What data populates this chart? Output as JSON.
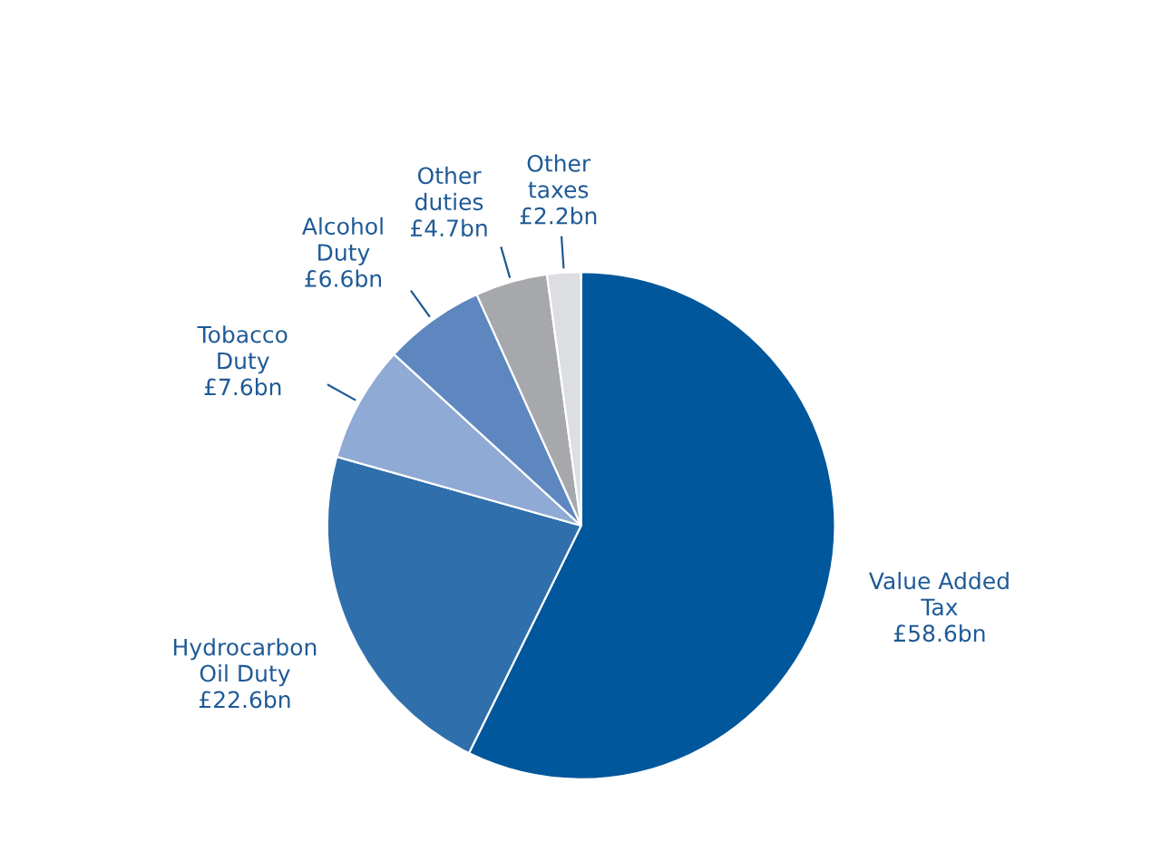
{
  "chart_data": {
    "type": "pie",
    "categories": [
      "Value Added\nTax",
      "Hydrocarbon\nOil Duty",
      "Tobacco\nDuty",
      "Alcohol\nDuty",
      "Other\nduties",
      "Other\ntaxes"
    ],
    "values": [
      58.6,
      22.6,
      7.6,
      6.6,
      4.7,
      2.2
    ],
    "colors": [
      "#00579b",
      "#2f6fac",
      "#8faad4",
      "#5e87c0",
      "#a6a8ab",
      "#dcdee1"
    ],
    "value_labels": [
      "£58.6bn",
      "£22.6bn",
      "£7.6bn",
      "£6.6bn",
      "£4.7bn",
      "£2.2bn"
    ]
  }
}
